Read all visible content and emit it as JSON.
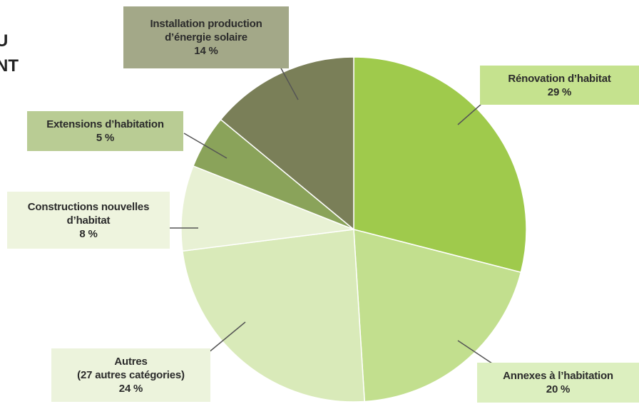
{
  "page_title_fragment": [
    "U",
    "NT"
  ],
  "chart_data": {
    "type": "pie",
    "title": "",
    "start_angle_deg": 0,
    "direction": "clockwise",
    "slices": [
      {
        "id": "renovation",
        "lines": [
          "Rénovation d’habitat",
          "29 %"
        ],
        "value": 29,
        "color": "#9fca4c"
      },
      {
        "id": "annexes",
        "lines": [
          "Annexes à l’habitation",
          "20 %"
        ],
        "value": 20,
        "color": "#c2df8e"
      },
      {
        "id": "autres",
        "lines": [
          "Autres",
          "(27 autres catégories)",
          "24 %"
        ],
        "value": 24,
        "color": "#d9eab9"
      },
      {
        "id": "constructions",
        "lines": [
          "Constructions nouvelles",
          "d’habitat",
          "8 %"
        ],
        "value": 8,
        "color": "#e8f1d4"
      },
      {
        "id": "extensions",
        "lines": [
          "Extensions d’habitation",
          "5 %"
        ],
        "value": 5,
        "color": "#8aa35a"
      },
      {
        "id": "solaire",
        "lines": [
          "Installation production",
          "d’énergie solaire",
          "14 %"
        ],
        "value": 14,
        "color": "#7a7f58"
      }
    ]
  }
}
